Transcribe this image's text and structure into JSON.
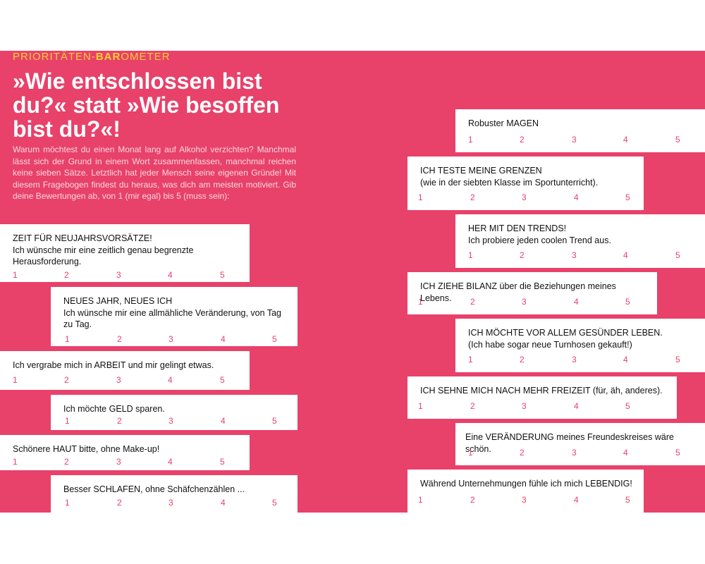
{
  "header": {
    "kicker_pre": "PRIORITÄTEN-",
    "kicker_bold": "BAR",
    "kicker_post": "OMETER",
    "headline": "»Wie entschlossen bist du?« statt »Wie besoffen bist du?«!",
    "intro": "Warum möchtest du einen Monat lang auf Alkohol verzichten? Manchmal lässt sich der Grund in einem Wort zusammenfassen, manchmal reichen keine sieben Sätze. Letztlich hat jeder Mensch seine eigenen Gründe! Mit diesem Fragebogen findest du heraus, was dich am meisten motiviert. Gib deine Bewertungen ab, von 1 (mir egal) bis 5 (muss sein):"
  },
  "scale": [
    "1",
    "2",
    "3",
    "4",
    "5"
  ],
  "cards": [
    {
      "text": "ZEIT FÜR NEUJAHRSVORSÄTZE!\nIch wünsche mir eine zeitlich genau begrenzte Herausforderung."
    },
    {
      "text": "NEUES JAHR, NEUES ICH\nIch wünsche mir eine allmähliche Veränderung, von Tag zu Tag."
    },
    {
      "text": "Ich vergrabe mich in ARBEIT und mir gelingt etwas."
    },
    {
      "text": "Ich möchte GELD sparen."
    },
    {
      "text": "Schönere HAUT bitte, ohne Make-up!"
    },
    {
      "text": "Besser SCHLAFEN, ohne Schäfchenzählen ..."
    },
    {
      "text": "Robuster MAGEN"
    },
    {
      "text": "ICH TESTE MEINE GRENZEN\n(wie in der siebten Klasse im Sportunterricht)."
    },
    {
      "text": "HER MIT DEN TRENDS!\nIch probiere jeden coolen Trend aus."
    },
    {
      "text": "ICH ZIEHE BILANZ über die Beziehungen meines Lebens."
    },
    {
      "text": "ICH MÖCHTE VOR ALLEM GESÜNDER LEBEN.\n(Ich habe sogar neue Turnhosen gekauft!)"
    },
    {
      "text": "ICH SEHNE MICH NACH MEHR FREIZEIT (für, äh, anderes)."
    },
    {
      "text": "Eine VERÄNDERUNG meines Freundeskreises wäre schön."
    },
    {
      "text": "Während Unternehmungen fühle ich mich LEBENDIG!"
    }
  ]
}
